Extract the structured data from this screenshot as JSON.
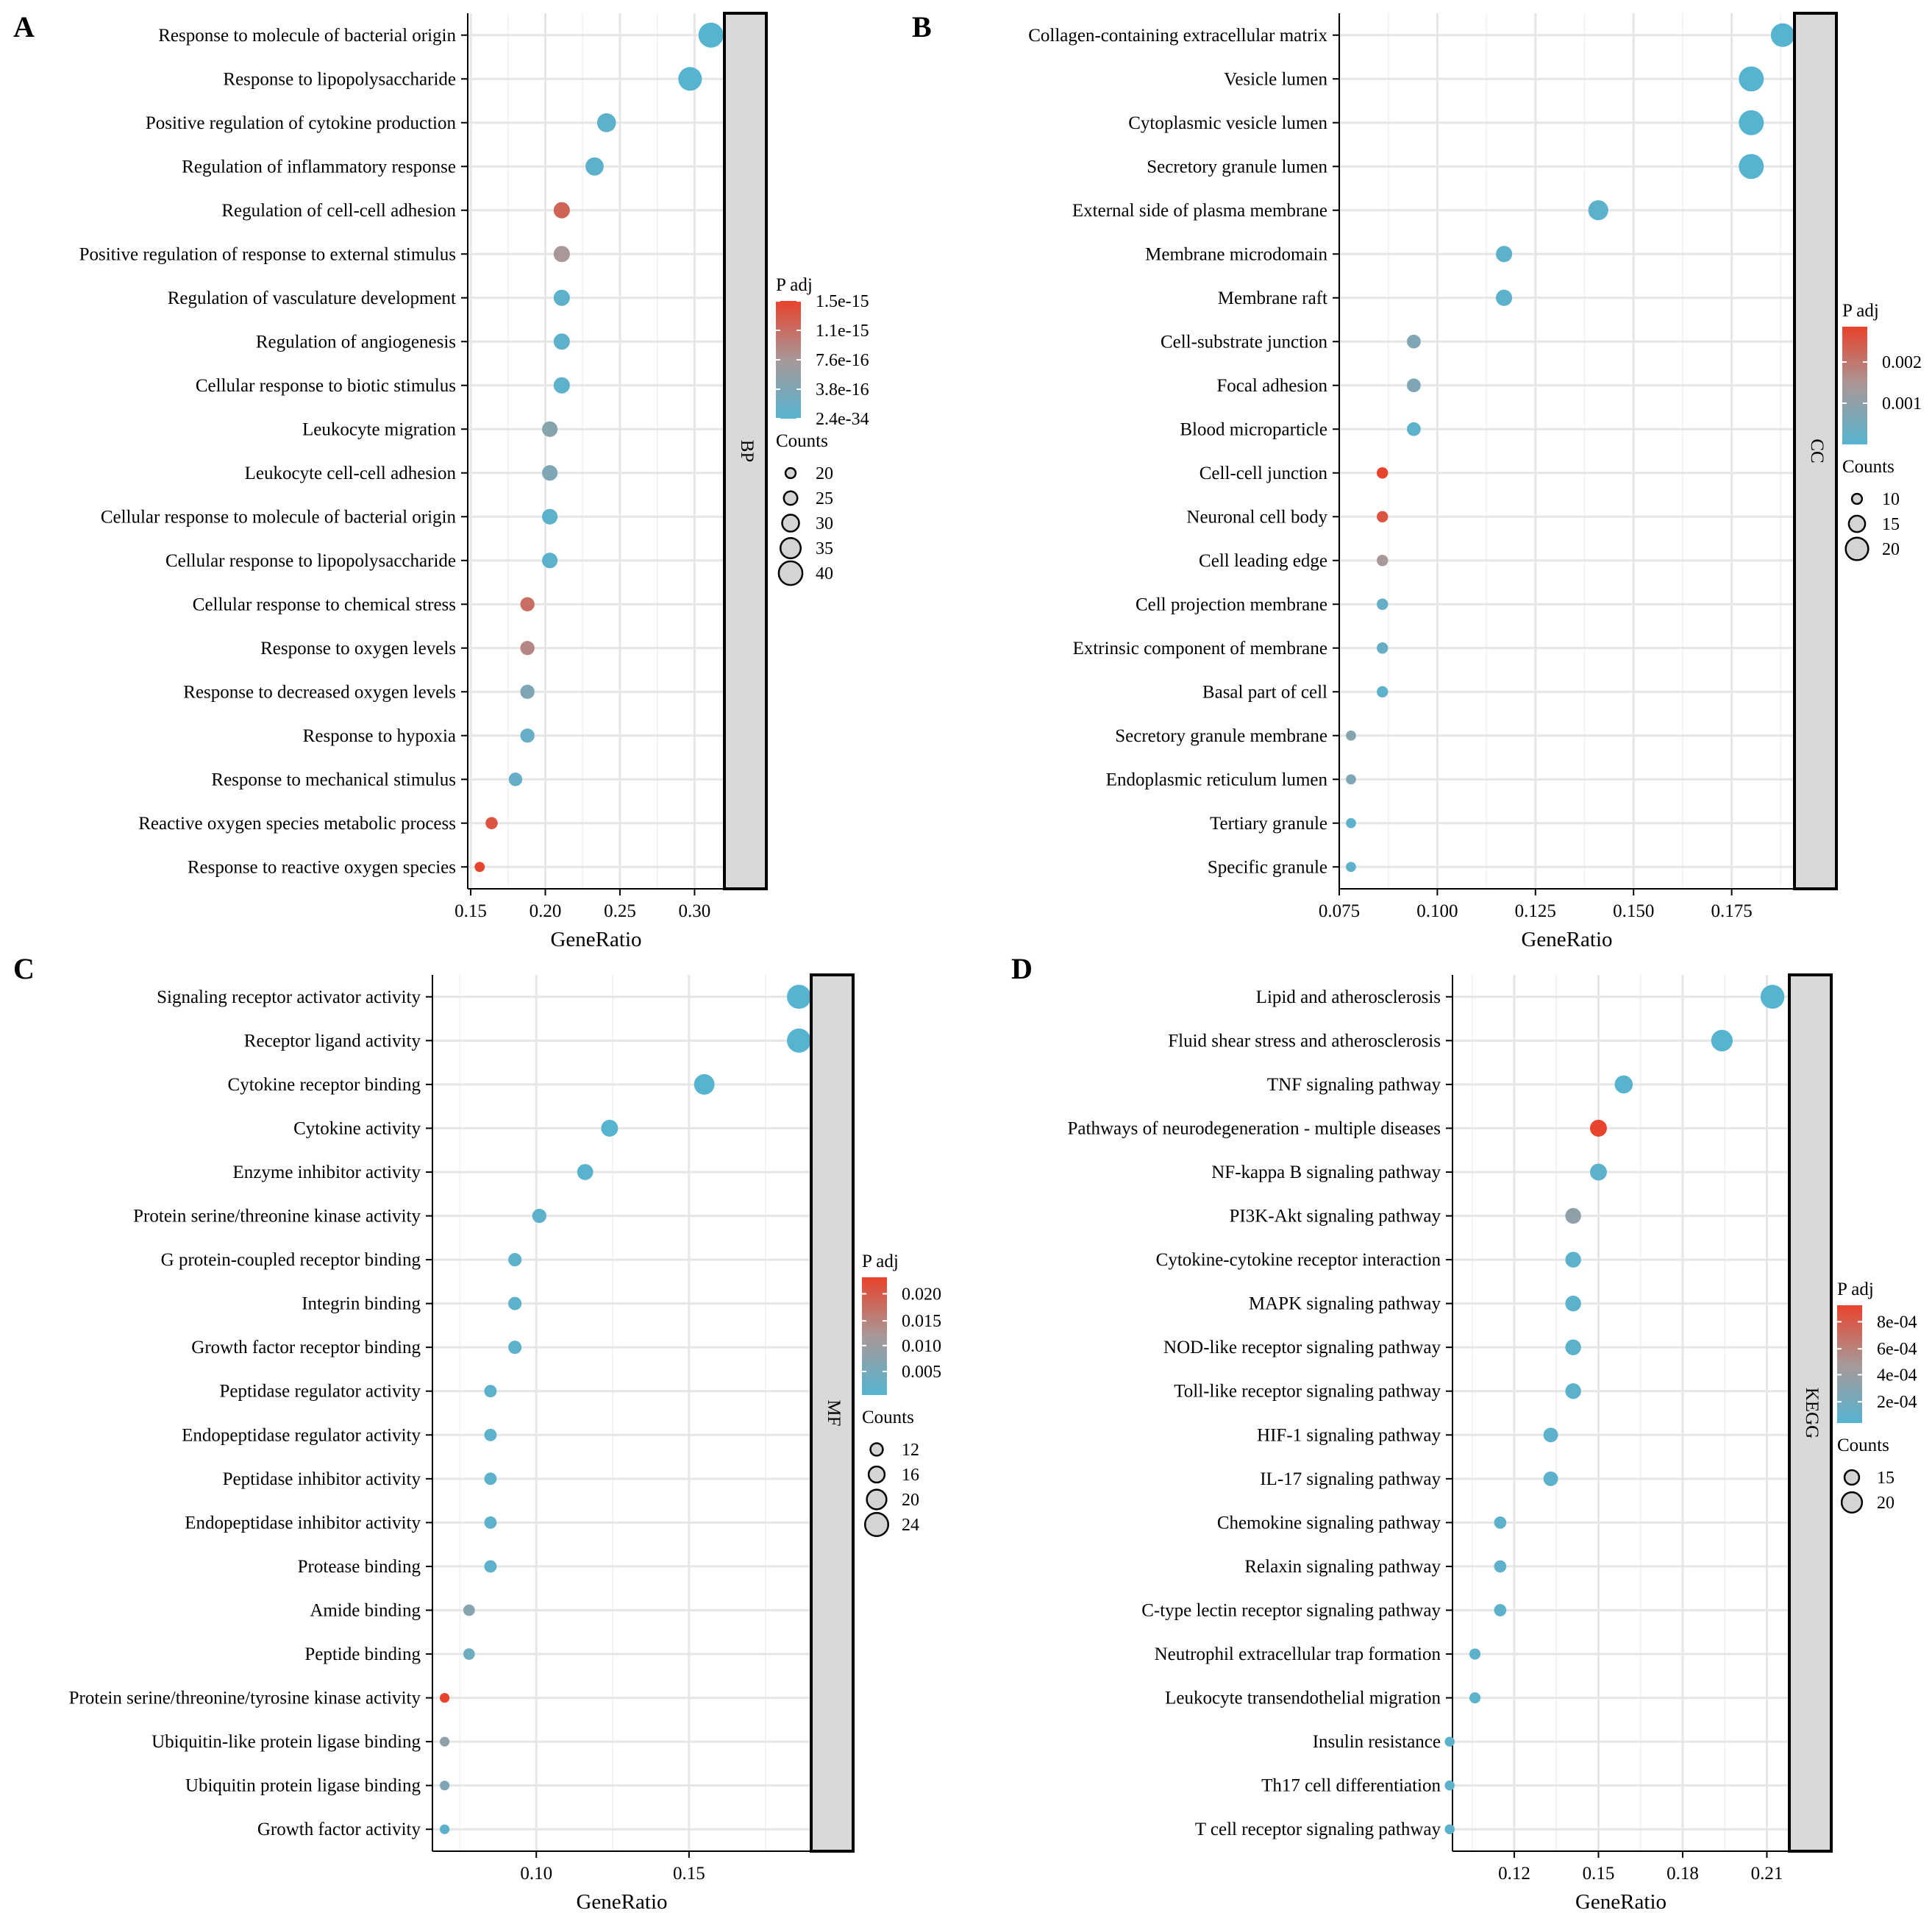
{
  "chart_data": [
    {
      "type": "scatter",
      "panel_label": "A",
      "facet": "BP",
      "xlabel": "GeneRatio",
      "xlim": [
        0.148,
        0.32
      ],
      "xticks": [
        0.15,
        0.2,
        0.25,
        0.3
      ],
      "xtick_labels": [
        "0.15",
        "0.20",
        "0.25",
        "0.30"
      ],
      "color_title": "P adj",
      "color_labels": [
        "1.5e-15",
        "1.1e-15",
        "7.6e-16",
        "3.8e-16",
        "2.4e-34"
      ],
      "size_title": "Counts",
      "size_legend": [
        20,
        25,
        30,
        35,
        40
      ],
      "count_range": [
        18,
        42
      ],
      "terms": [
        {
          "label": "Response to molecule of bacterial origin",
          "x": 0.311,
          "count": 42,
          "p": 0.0
        },
        {
          "label": "Response to lipopolysaccharide",
          "x": 0.297,
          "count": 40,
          "p": 0.0
        },
        {
          "label": "Positive regulation of cytokine production",
          "x": 0.241,
          "count": 33,
          "p": 0.05
        },
        {
          "label": "Regulation of inflammatory response",
          "x": 0.233,
          "count": 32,
          "p": 0.05
        },
        {
          "label": "Regulation of cell-cell adhesion",
          "x": 0.211,
          "count": 29,
          "p": 0.8
        },
        {
          "label": "Positive regulation of response to external stimulus",
          "x": 0.211,
          "count": 29,
          "p": 0.5
        },
        {
          "label": "Regulation of vasculature development",
          "x": 0.211,
          "count": 29,
          "p": 0.05
        },
        {
          "label": "Regulation of angiogenesis",
          "x": 0.211,
          "count": 29,
          "p": 0.05
        },
        {
          "label": "Cellular response to biotic stimulus",
          "x": 0.211,
          "count": 29,
          "p": 0.05
        },
        {
          "label": "Leukocyte migration",
          "x": 0.203,
          "count": 28,
          "p": 0.3
        },
        {
          "label": "Leukocyte cell-cell adhesion",
          "x": 0.203,
          "count": 28,
          "p": 0.25
        },
        {
          "label": "Cellular response to molecule of bacterial origin",
          "x": 0.203,
          "count": 28,
          "p": 0.05
        },
        {
          "label": "Cellular response to lipopolysaccharide",
          "x": 0.203,
          "count": 28,
          "p": 0.05
        },
        {
          "label": "Cellular response to chemical stress",
          "x": 0.188,
          "count": 26,
          "p": 0.75
        },
        {
          "label": "Response to oxygen levels",
          "x": 0.188,
          "count": 26,
          "p": 0.6
        },
        {
          "label": "Response to decreased oxygen levels",
          "x": 0.188,
          "count": 26,
          "p": 0.25
        },
        {
          "label": "Response to hypoxia",
          "x": 0.188,
          "count": 26,
          "p": 0.1
        },
        {
          "label": "Response to mechanical stimulus",
          "x": 0.18,
          "count": 25,
          "p": 0.1
        },
        {
          "label": "Reactive oxygen species metabolic process",
          "x": 0.164,
          "count": 23,
          "p": 0.9
        },
        {
          "label": "Response to reactive oxygen species",
          "x": 0.156,
          "count": 20,
          "p": 1.0
        }
      ]
    },
    {
      "type": "scatter",
      "panel_label": "B",
      "facet": "CC",
      "xlabel": "GeneRatio",
      "xlim": [
        0.075,
        0.191
      ],
      "xticks": [
        0.075,
        0.1,
        0.125,
        0.15,
        0.175
      ],
      "xtick_labels": [
        "0.075",
        "0.100",
        "0.125",
        "0.150",
        "0.175"
      ],
      "color_title": "P adj",
      "color_labels": [
        "0.002",
        "0.001"
      ],
      "color_label_fracs": [
        0.7,
        0.35
      ],
      "size_title": "Counts",
      "size_legend": [
        10,
        15,
        20
      ],
      "count_range": [
        9,
        22
      ],
      "terms": [
        {
          "label": "Collagen-containing extracellular matrix",
          "x": 0.188,
          "count": 21,
          "p": 0.0
        },
        {
          "label": "Vesicle lumen",
          "x": 0.18,
          "count": 22,
          "p": 0.0
        },
        {
          "label": "Cytoplasmic vesicle lumen",
          "x": 0.18,
          "count": 22,
          "p": 0.0
        },
        {
          "label": "Secretory granule lumen",
          "x": 0.18,
          "count": 22,
          "p": 0.0
        },
        {
          "label": "External side of plasma membrane",
          "x": 0.141,
          "count": 18,
          "p": 0.05
        },
        {
          "label": "Membrane microdomain",
          "x": 0.117,
          "count": 15,
          "p": 0.05
        },
        {
          "label": "Membrane raft",
          "x": 0.117,
          "count": 15,
          "p": 0.05
        },
        {
          "label": "Cell-substrate junction",
          "x": 0.094,
          "count": 13,
          "p": 0.25
        },
        {
          "label": "Focal adhesion",
          "x": 0.094,
          "count": 13,
          "p": 0.25
        },
        {
          "label": "Blood microparticle",
          "x": 0.094,
          "count": 13,
          "p": 0.05
        },
        {
          "label": "Cell-cell junction",
          "x": 0.086,
          "count": 11,
          "p": 1.0
        },
        {
          "label": "Neuronal cell body",
          "x": 0.086,
          "count": 11,
          "p": 0.9
        },
        {
          "label": "Cell leading edge",
          "x": 0.086,
          "count": 11,
          "p": 0.5
        },
        {
          "label": "Cell projection membrane",
          "x": 0.086,
          "count": 11,
          "p": 0.1
        },
        {
          "label": "Extrinsic component of membrane",
          "x": 0.086,
          "count": 11,
          "p": 0.1
        },
        {
          "label": "Basal part of cell",
          "x": 0.086,
          "count": 11,
          "p": 0.05
        },
        {
          "label": "Secretory granule membrane",
          "x": 0.078,
          "count": 10,
          "p": 0.3
        },
        {
          "label": "Endoplasmic reticulum lumen",
          "x": 0.078,
          "count": 10,
          "p": 0.25
        },
        {
          "label": "Tertiary granule",
          "x": 0.078,
          "count": 10,
          "p": 0.05
        },
        {
          "label": "Specific granule",
          "x": 0.078,
          "count": 10,
          "p": 0.05
        }
      ]
    },
    {
      "type": "scatter",
      "panel_label": "C",
      "facet": "MF",
      "xlabel": "GeneRatio",
      "xlim": [
        0.066,
        0.19
      ],
      "xticks": [
        0.1,
        0.15
      ],
      "xtick_labels": [
        "0.10",
        "0.15"
      ],
      "color_title": "P adj",
      "color_labels": [
        "0.020",
        "0.015",
        "0.010",
        "0.005"
      ],
      "color_label_fracs": [
        0.86,
        0.63,
        0.42,
        0.2
      ],
      "size_title": "Counts",
      "size_legend": [
        12,
        16,
        20,
        24
      ],
      "count_range": [
        8,
        26
      ],
      "terms": [
        {
          "label": "Signaling receptor activator activity",
          "x": 0.186,
          "count": 25,
          "p": 0.0
        },
        {
          "label": "Receptor ligand activity",
          "x": 0.186,
          "count": 25,
          "p": 0.0
        },
        {
          "label": "Cytokine receptor binding",
          "x": 0.155,
          "count": 21,
          "p": 0.0
        },
        {
          "label": "Cytokine activity",
          "x": 0.124,
          "count": 17,
          "p": 0.0
        },
        {
          "label": "Enzyme inhibitor activity",
          "x": 0.116,
          "count": 16,
          "p": 0.02
        },
        {
          "label": "Protein serine/threonine kinase activity",
          "x": 0.101,
          "count": 14,
          "p": 0.05
        },
        {
          "label": "G protein-coupled receptor binding",
          "x": 0.093,
          "count": 13,
          "p": 0.05
        },
        {
          "label": "Integrin binding",
          "x": 0.093,
          "count": 13,
          "p": 0.05
        },
        {
          "label": "Growth factor receptor binding",
          "x": 0.093,
          "count": 13,
          "p": 0.05
        },
        {
          "label": "Peptidase regulator activity",
          "x": 0.085,
          "count": 12,
          "p": 0.05
        },
        {
          "label": "Endopeptidase regulator activity",
          "x": 0.085,
          "count": 12,
          "p": 0.05
        },
        {
          "label": "Peptidase inhibitor activity",
          "x": 0.085,
          "count": 12,
          "p": 0.05
        },
        {
          "label": "Endopeptidase inhibitor activity",
          "x": 0.085,
          "count": 12,
          "p": 0.05
        },
        {
          "label": "Protease binding",
          "x": 0.085,
          "count": 12,
          "p": 0.05
        },
        {
          "label": "Amide binding",
          "x": 0.078,
          "count": 11,
          "p": 0.3
        },
        {
          "label": "Peptide binding",
          "x": 0.078,
          "count": 11,
          "p": 0.15
        },
        {
          "label": "Protein serine/threonine/tyrosine kinase activity",
          "x": 0.07,
          "count": 9,
          "p": 1.0
        },
        {
          "label": "Ubiquitin-like protein ligase binding",
          "x": 0.07,
          "count": 9,
          "p": 0.35
        },
        {
          "label": "Ubiquitin protein ligase binding",
          "x": 0.07,
          "count": 9,
          "p": 0.25
        },
        {
          "label": "Growth factor activity",
          "x": 0.07,
          "count": 9,
          "p": 0.05
        }
      ]
    },
    {
      "type": "scatter",
      "panel_label": "D",
      "facet": "KEGG",
      "xlabel": "GeneRatio",
      "xlim": [
        0.098,
        0.218
      ],
      "xticks": [
        0.12,
        0.15,
        0.18,
        0.21
      ],
      "xtick_labels": [
        "0.12",
        "0.15",
        "0.18",
        "0.21"
      ],
      "color_title": "P adj",
      "color_labels": [
        "8e-04",
        "6e-04",
        "4e-04",
        "2e-04"
      ],
      "color_label_fracs": [
        0.86,
        0.63,
        0.41,
        0.18
      ],
      "size_title": "Counts",
      "size_legend": [
        15,
        20
      ],
      "count_range": [
        10,
        24
      ],
      "terms": [
        {
          "label": "Lipid and atherosclerosis",
          "x": 0.212,
          "count": 23,
          "p": 0.0
        },
        {
          "label": "Fluid shear stress and atherosclerosis",
          "x": 0.194,
          "count": 21,
          "p": 0.0
        },
        {
          "label": "TNF signaling pathway",
          "x": 0.159,
          "count": 18,
          "p": 0.02
        },
        {
          "label": "Pathways of neurodegeneration - multiple diseases",
          "x": 0.15,
          "count": 17,
          "p": 1.0
        },
        {
          "label": "NF-kappa B signaling pathway",
          "x": 0.15,
          "count": 17,
          "p": 0.05
        },
        {
          "label": "PI3K-Akt signaling pathway",
          "x": 0.141,
          "count": 16,
          "p": 0.35
        },
        {
          "label": "Cytokine-cytokine receptor interaction",
          "x": 0.141,
          "count": 16,
          "p": 0.05
        },
        {
          "label": "MAPK signaling pathway",
          "x": 0.141,
          "count": 16,
          "p": 0.05
        },
        {
          "label": "NOD-like receptor signaling pathway",
          "x": 0.141,
          "count": 16,
          "p": 0.05
        },
        {
          "label": "Toll-like receptor signaling pathway",
          "x": 0.141,
          "count": 16,
          "p": 0.05
        },
        {
          "label": "HIF-1 signaling pathway",
          "x": 0.133,
          "count": 15,
          "p": 0.05
        },
        {
          "label": "IL-17 signaling pathway",
          "x": 0.133,
          "count": 15,
          "p": 0.05
        },
        {
          "label": "Chemokine signaling pathway",
          "x": 0.115,
          "count": 13,
          "p": 0.05
        },
        {
          "label": "Relaxin signaling pathway",
          "x": 0.115,
          "count": 13,
          "p": 0.05
        },
        {
          "label": "C-type lectin receptor signaling pathway",
          "x": 0.115,
          "count": 13,
          "p": 0.05
        },
        {
          "label": "Neutrophil extracellular trap formation",
          "x": 0.106,
          "count": 12,
          "p": 0.05
        },
        {
          "label": "Leukocyte transendothelial migration",
          "x": 0.106,
          "count": 12,
          "p": 0.05
        },
        {
          "label": "Insulin resistance",
          "x": 0.097,
          "count": 11,
          "p": 0.05
        },
        {
          "label": "Th17 cell differentiation",
          "x": 0.097,
          "count": 11,
          "p": 0.05
        },
        {
          "label": "T cell receptor signaling pathway",
          "x": 0.097,
          "count": 11,
          "p": 0.05
        }
      ]
    }
  ],
  "colors": {
    "low_padj": "#56B4D0",
    "mid_padj": "#A89898",
    "high_padj": "#E8432C",
    "strip_fill": "#D9D9D9",
    "grid": "#E6E6E6",
    "point_stroke": "#000000"
  }
}
